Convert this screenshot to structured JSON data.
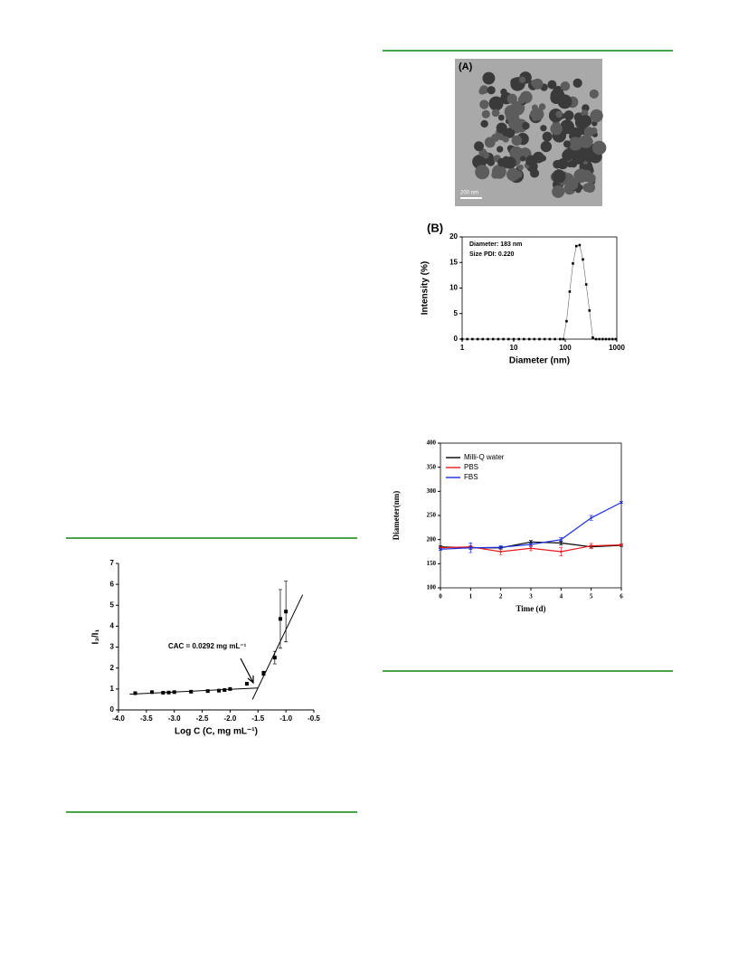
{
  "image": {
    "label": "(A)",
    "scale_bar": "200 nm"
  },
  "chart_data": [
    {
      "type": "scatter",
      "x_label": "Log C (C, mg mL⁻¹)",
      "y_label": "I₃/I₁",
      "annotation": "CAC = 0.0292 mg mL⁻¹",
      "x": [
        -3.7,
        -3.4,
        -3.2,
        -3.1,
        -3.0,
        -2.7,
        -2.4,
        -2.2,
        -2.1,
        -2.0,
        -1.7,
        -1.4,
        -1.2,
        -1.1,
        -1.0
      ],
      "values": [
        0.8,
        0.85,
        0.82,
        0.83,
        0.85,
        0.87,
        0.9,
        0.92,
        0.95,
        1.0,
        1.25,
        1.75,
        2.5,
        4.35,
        4.7
      ],
      "errors": [
        0.03,
        0.03,
        0.03,
        0.03,
        0.03,
        0.03,
        0.03,
        0.03,
        0.03,
        0.03,
        0.05,
        0.1,
        0.3,
        1.4,
        1.45
      ],
      "color": "#000000",
      "fit_lines": [
        {
          "x": [
            -3.8,
            -1.5
          ],
          "y": [
            0.75,
            1.05
          ]
        },
        {
          "x": [
            -1.6,
            -0.7
          ],
          "y": [
            0.5,
            5.5
          ]
        }
      ],
      "xlim": [
        -4.0,
        -0.5
      ],
      "xticks": [
        {
          "value": -4,
          "label": "-4.0"
        },
        {
          "value": -3.5,
          "label": "-3.5"
        },
        {
          "value": -3,
          "label": "-3.0"
        },
        {
          "value": -2.5,
          "label": "-2.5"
        },
        {
          "value": -2,
          "label": "-2.0"
        },
        {
          "value": -1.5,
          "label": "-1.5"
        },
        {
          "value": -1,
          "label": "-1.0"
        },
        {
          "value": -0.5,
          "label": "-0.5"
        }
      ],
      "ylim": [
        0,
        7
      ],
      "yticks": [
        0,
        1,
        2,
        3,
        4,
        5,
        6,
        7
      ]
    },
    {
      "type": "line",
      "panel_label": "(B)",
      "annotations": [
        "Diameter: 183 nm",
        "Size PDI: 0.220"
      ],
      "x_label": "Diameter (nm)",
      "y_label": "Intensity (%)",
      "x_scale": "log",
      "color": "#000000",
      "x": [
        1,
        1.26,
        1.58,
        2,
        2.51,
        3.16,
        3.98,
        5.01,
        6.31,
        7.94,
        10,
        12.6,
        15.8,
        20,
        25.1,
        31.6,
        39.8,
        50.1,
        63.1,
        79.4,
        91.3,
        106,
        122,
        141,
        164,
        190,
        220,
        255,
        295,
        342,
        396,
        459,
        531,
        615,
        712,
        825,
        955
      ],
      "values": [
        0,
        0,
        0,
        0,
        0,
        0,
        0,
        0,
        0,
        0,
        0,
        0,
        0,
        0,
        0,
        0,
        0,
        0,
        0,
        0,
        0,
        3.5,
        9.3,
        14.8,
        18.2,
        18.4,
        15.6,
        10.7,
        5.6,
        0.3,
        0,
        0,
        0,
        0,
        0,
        0,
        0
      ],
      "xlim": [
        1,
        1000
      ],
      "xticks": [
        1,
        10,
        100,
        1000
      ],
      "ylim": [
        0,
        20
      ],
      "yticks": [
        0,
        5,
        10,
        15,
        20
      ]
    },
    {
      "type": "errorline",
      "x_label": "Time (d)",
      "y_label": "Diameter(nm)",
      "legend": "upper-left",
      "x": [
        0,
        1,
        2,
        3,
        4,
        5,
        6
      ],
      "series": [
        {
          "name": "Milli-Q water",
          "color": "#000000",
          "values": [
            185,
            183,
            183,
            195,
            193,
            185,
            188
          ],
          "errors": [
            2,
            3,
            3,
            3,
            4,
            3,
            2
          ]
        },
        {
          "name": "PBS",
          "color": "#e8191c",
          "values": [
            183,
            185,
            175,
            182,
            175,
            187,
            189
          ],
          "errors": [
            2,
            3,
            6,
            5,
            9,
            5,
            2
          ]
        },
        {
          "name": "FBS",
          "color": "#1d2fe0",
          "values": [
            180,
            183,
            184,
            190,
            200,
            245,
            277
          ],
          "errors": [
            2,
            10,
            3,
            4,
            4,
            5,
            2
          ]
        }
      ],
      "xlim": [
        0,
        6
      ],
      "xticks": [
        0,
        1,
        2,
        3,
        4,
        5,
        6
      ],
      "ylim": [
        100,
        400
      ],
      "yticks": [
        100,
        150,
        200,
        250,
        300,
        350,
        400
      ]
    }
  ]
}
